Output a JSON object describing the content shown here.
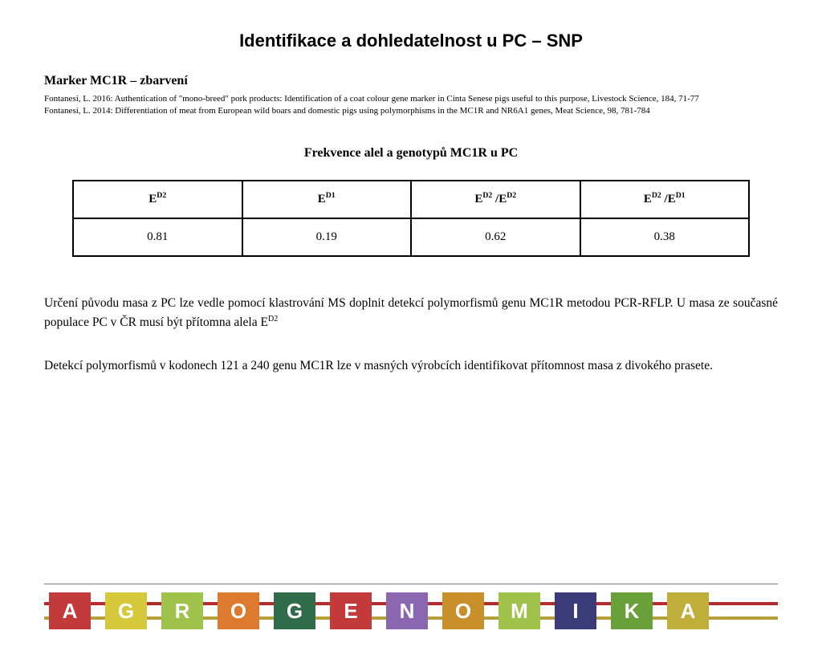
{
  "title": "Identifikace a dohledatelnost  u PC – SNP",
  "subtitle": "Marker MC1R  – zbarvení",
  "refs": {
    "r1": "Fontanesi, L. 2016: Authentication of \"mono-breed\" pork products: Identification of a coat colour gene marker in Cinta Senese pigs useful to this purpose, Livestock Science, 184, 71-77",
    "r2": "Fontanesi, L. 2014: Differentiation of meat from European wild boars and domestic pigs using polymorphisms in the MC1R and NR6A1 genes, Meat Science, 98, 781-784"
  },
  "tableTitle": "Frekvence alel a genotypů MC1R u PC",
  "table": {
    "rows": [
      [
        {
          "pre": "E",
          "sup": "D2",
          "post": ""
        },
        {
          "pre": "E",
          "sup": "D1",
          "post": ""
        },
        {
          "pre": "E",
          "sup": "D2",
          "post": " /E",
          "sup2": "D2"
        },
        {
          "pre": "E",
          "sup": "D2",
          "post": " /E",
          "sup2": "D1"
        }
      ],
      [
        {
          "text": "0.81"
        },
        {
          "text": "0.19"
        },
        {
          "text": "0.62"
        },
        {
          "text": "0.38"
        }
      ]
    ],
    "border_color": "#000000",
    "cell_font_size": 15
  },
  "para1": {
    "t1": "Určení původu masa z PC lze vedle pomocí klastrování MS doplnit detekcí polymorfismů genu MC1R metodou PCR-RFLP. U masa ze současné populace PC v ČR  musí být přítomna alela E",
    "sup": "D2"
  },
  "para2": "Detekcí polymorfismů v kodonech 121 a 240 genu MC1R lze v masných výrobcích identifikovat přítomnost masa z divokého prasete.",
  "logo": {
    "letters": [
      "A",
      "G",
      "R",
      "O",
      "G",
      "E",
      "N",
      "O",
      "M",
      "I",
      "K",
      "A"
    ],
    "box_colors": [
      "#c23a3a",
      "#d6c83b",
      "#9ec24a",
      "#dd7a2e",
      "#2f6d4a",
      "#c23a3a",
      "#8a67b0",
      "#c98f2a",
      "#9ec24a",
      "#3b3b7a",
      "#6aa03a",
      "#bfae3a"
    ],
    "stripe_top_color": "#b52a2a",
    "stripe_bottom_color": "#b5a03a",
    "rule_color": "#7a7a7a",
    "letter_color": "#ffffff",
    "letter_fontsize": 26
  }
}
